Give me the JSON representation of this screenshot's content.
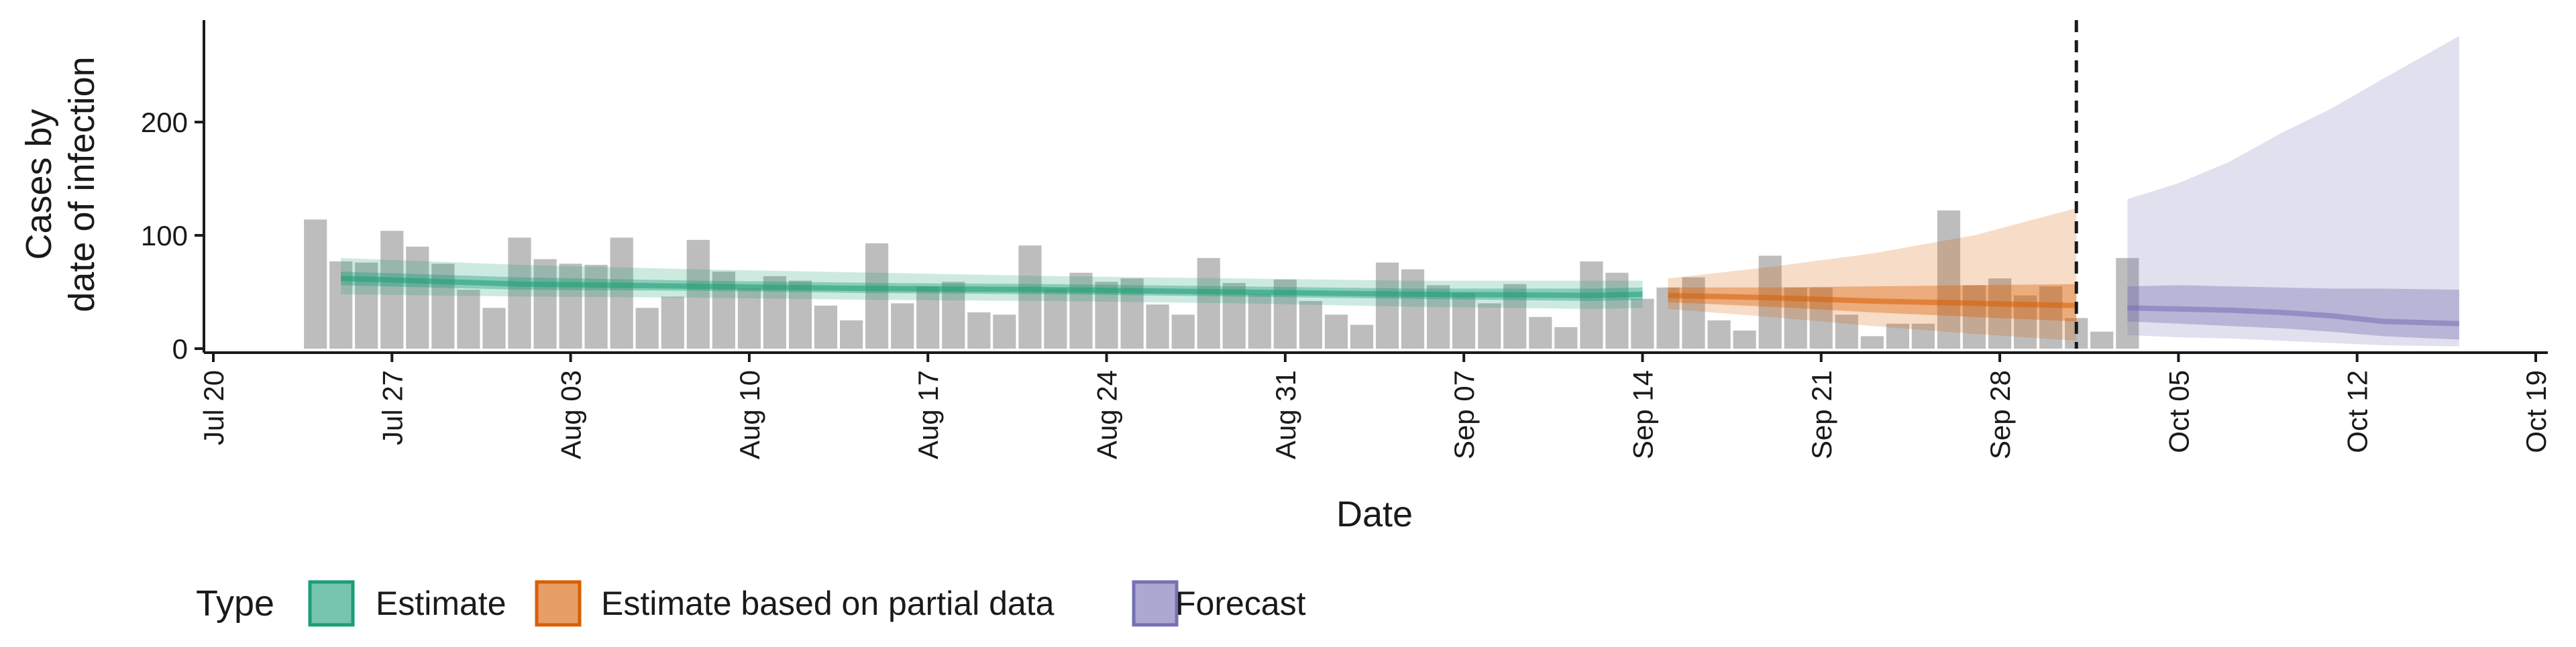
{
  "chart_data": {
    "type": "bar",
    "title": "",
    "xlabel": "Date",
    "ylabel_lines": [
      "Cases by",
      "date of infection"
    ],
    "x_range": [
      "2020-07-20",
      "2020-10-19"
    ],
    "y_range": [
      0,
      290
    ],
    "x_ticks": [
      {
        "date": "2020-07-20",
        "label": "Jul 20"
      },
      {
        "date": "2020-07-27",
        "label": "Jul 27"
      },
      {
        "date": "2020-08-03",
        "label": "Aug 03"
      },
      {
        "date": "2020-08-10",
        "label": "Aug 10"
      },
      {
        "date": "2020-08-17",
        "label": "Aug 17"
      },
      {
        "date": "2020-08-24",
        "label": "Aug 24"
      },
      {
        "date": "2020-08-31",
        "label": "Aug 31"
      },
      {
        "date": "2020-09-07",
        "label": "Sep 07"
      },
      {
        "date": "2020-09-14",
        "label": "Sep 14"
      },
      {
        "date": "2020-09-21",
        "label": "Sep 21"
      },
      {
        "date": "2020-09-28",
        "label": "Sep 28"
      },
      {
        "date": "2020-10-05",
        "label": "Oct 05"
      },
      {
        "date": "2020-10-12",
        "label": "Oct 12"
      },
      {
        "date": "2020-10-19",
        "label": "Oct 19"
      }
    ],
    "y_ticks": [
      0,
      100,
      200
    ],
    "grid": false,
    "observed_cases": {
      "start_date": "2020-07-24",
      "values": [
        114,
        77,
        76,
        104,
        90,
        75,
        52,
        36,
        98,
        79,
        75,
        74,
        98,
        36,
        46,
        96,
        68,
        53,
        64,
        60,
        38,
        25,
        93,
        40,
        55,
        59,
        32,
        30,
        91,
        53,
        67,
        59,
        62,
        39,
        30,
        80,
        58,
        48,
        61,
        42,
        30,
        21,
        76,
        70,
        56,
        49,
        40,
        57,
        28,
        19,
        77,
        67,
        44,
        54,
        63,
        25,
        16,
        82,
        54,
        54,
        30,
        11,
        22,
        22,
        122,
        56,
        62,
        47,
        55,
        27,
        15,
        80
      ],
      "color": "#bdbdbd"
    },
    "vline_date": "2020-10-01",
    "bands": [
      {
        "name": "Estimate",
        "color": "#1b9e77",
        "x": [
          "2020-07-25",
          "2020-08-01",
          "2020-08-08",
          "2020-08-15",
          "2020-08-22",
          "2020-08-29",
          "2020-09-05",
          "2020-09-12",
          "2020-09-14"
        ],
        "median": [
          62,
          57,
          55,
          53,
          52,
          50,
          48,
          47,
          48
        ],
        "inner_low": [
          56,
          52,
          51,
          49,
          48,
          46,
          44,
          42,
          43
        ],
        "inner_high": [
          68,
          63,
          60,
          58,
          57,
          55,
          53,
          53,
          54
        ],
        "outer_low": [
          48,
          46,
          45,
          43,
          42,
          40,
          37,
          35,
          36
        ],
        "outer_high": [
          80,
          74,
          70,
          67,
          64,
          62,
          60,
          60,
          60
        ]
      },
      {
        "name": "Estimate based on partial data",
        "color": "#d95f02",
        "x": [
          "2020-09-15",
          "2020-09-19",
          "2020-09-23",
          "2020-09-27",
          "2020-10-01"
        ],
        "median": [
          47,
          45,
          42,
          40,
          38
        ],
        "inner_low": [
          41,
          37,
          32,
          28,
          24
        ],
        "inner_high": [
          54,
          54,
          55,
          56,
          57
        ],
        "outer_low": [
          35,
          28,
          20,
          13,
          7
        ],
        "outer_high": [
          62,
          72,
          84,
          100,
          124
        ]
      },
      {
        "name": "Forecast",
        "color": "#7570b3",
        "x": [
          "2020-10-03",
          "2020-10-05",
          "2020-10-07",
          "2020-10-09",
          "2020-10-11",
          "2020-10-13",
          "2020-10-16"
        ],
        "median": [
          36,
          35,
          34,
          32,
          29,
          24,
          22
        ],
        "inner_low": [
          24,
          22,
          20,
          18,
          15,
          11,
          8
        ],
        "inner_high": [
          55,
          56,
          55,
          54,
          53,
          53,
          52
        ],
        "outer_low": [
          12,
          10,
          9,
          7,
          5,
          3,
          2
        ],
        "outer_high": [
          132,
          146,
          165,
          190,
          212,
          238,
          276
        ]
      }
    ],
    "legend": {
      "title": "Type",
      "position": "bottom-left",
      "entries": [
        {
          "label": "Estimate",
          "color": "#1b9e77"
        },
        {
          "label": "Estimate based on partial data",
          "color": "#d95f02"
        },
        {
          "label": "Forecast",
          "color": "#7570b3"
        }
      ]
    }
  }
}
